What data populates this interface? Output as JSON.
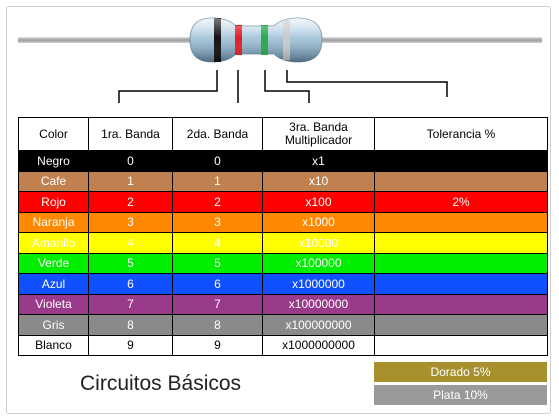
{
  "headers": {
    "color": "Color",
    "band1": "1ra. Banda",
    "band2": "2da. Banda",
    "band3_line1": "3ra. Banda",
    "band3_line2": "Multiplicador",
    "tolerance": "Tolerancia %"
  },
  "rows": [
    {
      "color": "Negro",
      "band1": "0",
      "band2": "0",
      "multiplier": "x1",
      "tolerance": "",
      "bg": "#000000",
      "fg": "#ffffff"
    },
    {
      "color": "Cafe",
      "band1": "1",
      "band2": "1",
      "multiplier": "x10",
      "tolerance": "",
      "bg": "#c08050",
      "fg": "#ffffff"
    },
    {
      "color": "Rojo",
      "band1": "2",
      "band2": "2",
      "multiplier": "x100",
      "tolerance": "2%",
      "bg": "#ff0000",
      "fg": "#ffffff"
    },
    {
      "color": "Naranja",
      "band1": "3",
      "band2": "3",
      "multiplier": "x1000",
      "tolerance": "",
      "bg": "#ff8800",
      "fg": "#ffffff"
    },
    {
      "color": "Amarillo",
      "band1": "4",
      "band2": "4",
      "multiplier": "x10000",
      "tolerance": "",
      "bg": "#ffff00",
      "fg": "#ffffff"
    },
    {
      "color": "Verde",
      "band1": "5",
      "band2": "5",
      "multiplier": "x100000",
      "tolerance": "",
      "bg": "#00ee00",
      "fg": "#ffffff"
    },
    {
      "color": "Azul",
      "band1": "6",
      "band2": "6",
      "multiplier": "x1000000",
      "tolerance": "",
      "bg": "#1150ff",
      "fg": "#ffffff"
    },
    {
      "color": "Violeta",
      "band1": "7",
      "band2": "7",
      "multiplier": "x10000000",
      "tolerance": "",
      "bg": "#9a3a8a",
      "fg": "#ffffff"
    },
    {
      "color": "Gris",
      "band1": "8",
      "band2": "8",
      "multiplier": "x100000000",
      "tolerance": "",
      "bg": "#8a8a8a",
      "fg": "#ffffff"
    },
    {
      "color": "Blanco",
      "band1": "9",
      "band2": "9",
      "multiplier": "x1000000000",
      "tolerance": "",
      "bg": "#ffffff",
      "fg": "#000000"
    }
  ],
  "extra_tolerances": [
    {
      "label": "Dorado  5%",
      "bg": "#a6912e"
    },
    {
      "label": "Plata  10%",
      "bg": "#9a9a9a"
    }
  ],
  "footer_title": "Circuitos Básicos",
  "resistor": {
    "body_color": "#a9c7dd",
    "bands": [
      "#111111",
      "#e31e24",
      "#2aa84a",
      "#c9c9c9"
    ]
  }
}
